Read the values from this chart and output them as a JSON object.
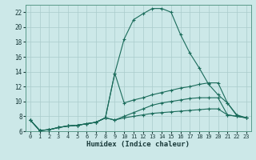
{
  "xlabel": "Humidex (Indice chaleur)",
  "bg_color": "#cce8e8",
  "grid_color": "#aacccc",
  "line_color": "#1a6b5a",
  "xlim": [
    -0.5,
    23.5
  ],
  "ylim": [
    6,
    23
  ],
  "xticks": [
    0,
    1,
    2,
    3,
    4,
    5,
    6,
    7,
    8,
    9,
    10,
    11,
    12,
    13,
    14,
    15,
    16,
    17,
    18,
    19,
    20,
    21,
    22,
    23
  ],
  "yticks": [
    6,
    8,
    10,
    12,
    14,
    16,
    18,
    20,
    22
  ],
  "line1_x": [
    0,
    1,
    2,
    3,
    4,
    5,
    6,
    7,
    8,
    9,
    10,
    11,
    12,
    13,
    14,
    15,
    16,
    17,
    18,
    19,
    20,
    21,
    22,
    23
  ],
  "line1_y": [
    7.5,
    6.1,
    6.2,
    6.5,
    6.7,
    6.8,
    7.0,
    7.2,
    7.8,
    7.5,
    8.0,
    8.5,
    9.0,
    9.5,
    9.8,
    10.0,
    10.2,
    10.4,
    10.5,
    10.5,
    10.5,
    8.2,
    8.0,
    7.8
  ],
  "line2_x": [
    0,
    1,
    2,
    3,
    4,
    5,
    6,
    7,
    8,
    9,
    10,
    11,
    12,
    13,
    14,
    15,
    16,
    17,
    18,
    19,
    20,
    21,
    22,
    23
  ],
  "line2_y": [
    7.5,
    6.1,
    6.2,
    6.5,
    6.7,
    6.8,
    7.0,
    7.2,
    7.8,
    13.8,
    9.8,
    10.2,
    10.5,
    10.9,
    11.2,
    11.5,
    11.8,
    12.0,
    12.3,
    12.5,
    12.5,
    9.8,
    8.2,
    7.8
  ],
  "line3_x": [
    0,
    1,
    2,
    3,
    4,
    5,
    6,
    7,
    8,
    9,
    10,
    11,
    12,
    13,
    14,
    15,
    16,
    17,
    18,
    19,
    20,
    21,
    22,
    23
  ],
  "line3_y": [
    7.5,
    6.1,
    6.2,
    6.5,
    6.7,
    6.8,
    7.0,
    7.2,
    7.8,
    13.8,
    18.4,
    21.0,
    21.8,
    22.5,
    22.5,
    22.0,
    19.0,
    16.5,
    14.5,
    12.3,
    10.9,
    9.8,
    8.1,
    7.8
  ],
  "line4_x": [
    0,
    1,
    2,
    3,
    4,
    5,
    6,
    7,
    8,
    9,
    10,
    11,
    12,
    13,
    14,
    15,
    16,
    17,
    18,
    19,
    20,
    21,
    22,
    23
  ],
  "line4_y": [
    7.5,
    6.1,
    6.2,
    6.5,
    6.7,
    6.8,
    7.0,
    7.2,
    7.8,
    7.5,
    7.8,
    8.0,
    8.2,
    8.4,
    8.5,
    8.6,
    8.7,
    8.8,
    8.9,
    9.0,
    9.0,
    8.2,
    8.0,
    7.8
  ]
}
